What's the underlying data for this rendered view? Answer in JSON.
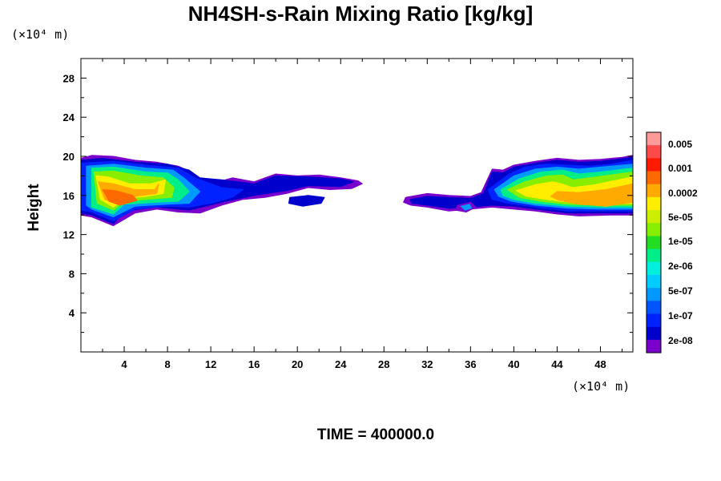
{
  "chart_data": {
    "type": "heatmap",
    "title": "NH4SH-s-Rain Mixing Ratio [kg/kg]",
    "ylabel": "Height",
    "x_unit_label": "(×10⁴ m)",
    "y_unit_label": "(×10⁴ m)",
    "footer": "TIME = 400000.0",
    "xlim": [
      0,
      51
    ],
    "ylim": [
      0,
      30
    ],
    "x_ticks": [
      4,
      8,
      12,
      16,
      20,
      24,
      28,
      32,
      36,
      40,
      44,
      48
    ],
    "y_ticks": [
      4,
      8,
      12,
      16,
      20,
      24,
      28
    ],
    "colorbar": {
      "labels": [
        "0.005",
        "0.001",
        "0.0002",
        "5e-05",
        "1e-05",
        "2e-06",
        "5e-07",
        "1e-07",
        "2e-08"
      ],
      "colors_top_to_bottom": [
        "#ff9a9a",
        "#ff4a4a",
        "#ff1a00",
        "#ff6a00",
        "#ffaa00",
        "#ffee00",
        "#ccee00",
        "#88ee00",
        "#22dd22",
        "#00ee88",
        "#00eedd",
        "#00ccff",
        "#0099ff",
        "#0055ff",
        "#0022ff",
        "#0000cc",
        "#7a00cc"
      ]
    },
    "regions": [
      {
        "level": 0,
        "color": "#7a00cc",
        "points": [
          [
            0,
            19.8
          ],
          [
            1,
            20.1
          ],
          [
            3,
            20
          ],
          [
            5,
            19.6
          ],
          [
            7,
            19.4
          ],
          [
            9,
            19
          ],
          [
            10,
            18.5
          ],
          [
            11,
            17.6
          ],
          [
            12,
            17.2
          ],
          [
            14,
            17.8
          ],
          [
            16,
            17.4
          ],
          [
            18,
            18.2
          ],
          [
            20,
            18
          ],
          [
            22,
            18.1
          ],
          [
            24,
            17.8
          ],
          [
            25.6,
            17.5
          ],
          [
            26,
            17.2
          ],
          [
            25,
            16.7
          ],
          [
            23,
            16.6
          ],
          [
            21,
            16.8
          ],
          [
            19,
            16.2
          ],
          [
            17,
            15.8
          ],
          [
            15,
            15.6
          ],
          [
            13,
            15
          ],
          [
            11,
            14.2
          ],
          [
            9,
            14.3
          ],
          [
            7,
            14.6
          ],
          [
            5,
            14.2
          ],
          [
            3,
            12.9
          ],
          [
            1,
            13.8
          ],
          [
            0,
            14
          ]
        ]
      },
      {
        "level": 1,
        "color": "#0000cc",
        "points": [
          [
            0,
            19.6
          ],
          [
            2,
            19.8
          ],
          [
            5,
            19.4
          ],
          [
            8,
            19.2
          ],
          [
            10,
            18.6
          ],
          [
            11,
            17.8
          ],
          [
            13,
            17.6
          ],
          [
            16,
            17.2
          ],
          [
            18,
            18
          ],
          [
            21,
            17.9
          ],
          [
            24,
            17.7
          ],
          [
            25.2,
            17.4
          ],
          [
            24,
            16.9
          ],
          [
            21,
            17
          ],
          [
            19,
            16.5
          ],
          [
            16,
            16
          ],
          [
            13,
            15.3
          ],
          [
            10,
            14.5
          ],
          [
            7,
            14.8
          ],
          [
            4,
            14.4
          ],
          [
            3,
            13.1
          ],
          [
            1,
            14
          ],
          [
            0,
            14.2
          ]
        ]
      },
      {
        "level": 2,
        "color": "#0022ff",
        "points": [
          [
            0,
            19.3
          ],
          [
            3,
            19.5
          ],
          [
            6,
            19.1
          ],
          [
            9,
            18.8
          ],
          [
            10.5,
            17.8
          ],
          [
            13,
            16.8
          ],
          [
            15,
            16.6
          ],
          [
            14,
            15.8
          ],
          [
            12,
            15.2
          ],
          [
            10,
            14.8
          ],
          [
            8,
            14.9
          ],
          [
            5,
            14.6
          ],
          [
            3,
            13.4
          ],
          [
            1,
            14.3
          ],
          [
            0,
            14.5
          ]
        ]
      },
      {
        "level": 3,
        "color": "#0099ff",
        "points": [
          [
            0.5,
            19
          ],
          [
            3,
            19.2
          ],
          [
            6,
            18.8
          ],
          [
            8.5,
            18.6
          ],
          [
            9.5,
            17.8
          ],
          [
            11,
            16.4
          ],
          [
            10,
            15.2
          ],
          [
            8,
            15.1
          ],
          [
            5,
            14.9
          ],
          [
            3,
            13.8
          ],
          [
            1,
            14.6
          ],
          [
            0.5,
            15
          ]
        ]
      },
      {
        "level": 4,
        "color": "#00ee88",
        "points": [
          [
            1,
            18.8
          ],
          [
            3,
            18.9
          ],
          [
            6,
            18.4
          ],
          [
            8,
            18.3
          ],
          [
            9,
            17.6
          ],
          [
            10,
            16.4
          ],
          [
            9,
            15.4
          ],
          [
            7,
            15.3
          ],
          [
            4,
            15.1
          ],
          [
            3,
            14.1
          ],
          [
            1,
            14.8
          ]
        ]
      },
      {
        "level": 5,
        "color": "#88ee00",
        "points": [
          [
            1.2,
            18.4
          ],
          [
            3,
            18.5
          ],
          [
            5.5,
            18
          ],
          [
            7.6,
            17.8
          ],
          [
            8.6,
            16.8
          ],
          [
            8.4,
            15.8
          ],
          [
            6,
            15.6
          ],
          [
            4,
            15.4
          ],
          [
            3,
            14.5
          ],
          [
            1.5,
            15.2
          ]
        ]
      },
      {
        "level": 6,
        "color": "#ffee00",
        "points": [
          [
            1.4,
            18
          ],
          [
            2.5,
            17.9
          ],
          [
            4.5,
            17.2
          ],
          [
            6.5,
            17.2
          ],
          [
            7.8,
            17.6
          ],
          [
            7.6,
            16.2
          ],
          [
            6,
            15.9
          ],
          [
            4,
            15.7
          ],
          [
            3,
            14.8
          ],
          [
            1.8,
            15.6
          ]
        ]
      },
      {
        "level": 7,
        "color": "#ffaa00",
        "points": [
          [
            1.6,
            17.4
          ],
          [
            3,
            17.2
          ],
          [
            5,
            16.6
          ],
          [
            6.8,
            16.6
          ],
          [
            7.2,
            17.2
          ],
          [
            7,
            16.2
          ],
          [
            5,
            15.9
          ],
          [
            3.2,
            15.2
          ],
          [
            2.2,
            15.6
          ]
        ]
      },
      {
        "level": 8,
        "color": "#ff6a00",
        "points": [
          [
            2,
            16.6
          ],
          [
            3.2,
            16.5
          ],
          [
            4.8,
            16
          ],
          [
            5.2,
            15.5
          ],
          [
            3.6,
            15
          ],
          [
            2.6,
            15.4
          ]
        ]
      },
      {
        "level": 0,
        "color": "#7a00cc",
        "points": [
          [
            30,
            15.8
          ],
          [
            32,
            16.2
          ],
          [
            34,
            16
          ],
          [
            36,
            15.9
          ],
          [
            37,
            16.3
          ],
          [
            37.5,
            17.5
          ],
          [
            38,
            18.7
          ],
          [
            39,
            18.6
          ],
          [
            40,
            19.1
          ],
          [
            42,
            19.5
          ],
          [
            44,
            19.8
          ],
          [
            46,
            19.6
          ],
          [
            48,
            19.7
          ],
          [
            50,
            19.9
          ],
          [
            51,
            20.1
          ],
          [
            51,
            14
          ],
          [
            49,
            14
          ],
          [
            46,
            13.9
          ],
          [
            44,
            14.1
          ],
          [
            42,
            14.4
          ],
          [
            40,
            14.6
          ],
          [
            38,
            14.8
          ],
          [
            36,
            14.6
          ],
          [
            34,
            14.4
          ],
          [
            32,
            14.8
          ],
          [
            30.5,
            15
          ],
          [
            29.8,
            15.3
          ]
        ]
      },
      {
        "level": 1,
        "color": "#0000cc",
        "points": [
          [
            30.4,
            15.6
          ],
          [
            32,
            15.9
          ],
          [
            34,
            15.8
          ],
          [
            36,
            15.7
          ],
          [
            37.2,
            16.2
          ],
          [
            38,
            18.4
          ],
          [
            39,
            18.3
          ],
          [
            40,
            18.9
          ],
          [
            42,
            19.3
          ],
          [
            44,
            19.6
          ],
          [
            46,
            19.4
          ],
          [
            48,
            19.5
          ],
          [
            51,
            19.9
          ],
          [
            51,
            14.2
          ],
          [
            48,
            14.2
          ],
          [
            45,
            14.2
          ],
          [
            42,
            14.6
          ],
          [
            40,
            14.9
          ],
          [
            38,
            15
          ],
          [
            36,
            14.8
          ],
          [
            34,
            14.7
          ],
          [
            32,
            15
          ],
          [
            30.6,
            15.2
          ]
        ]
      },
      {
        "level": 2,
        "color": "#0022ff",
        "points": [
          [
            37.6,
            16.6
          ],
          [
            39.6,
            18.2
          ],
          [
            41,
            18.9
          ],
          [
            43,
            19.2
          ],
          [
            45,
            19.1
          ],
          [
            47,
            19
          ],
          [
            49,
            19.2
          ],
          [
            51,
            19.6
          ],
          [
            51,
            14.4
          ],
          [
            48,
            14.4
          ],
          [
            45,
            14.4
          ],
          [
            42,
            14.8
          ],
          [
            39.5,
            15.2
          ],
          [
            38,
            15.6
          ]
        ]
      },
      {
        "level": 3,
        "color": "#0099ff",
        "points": [
          [
            38.2,
            16.6
          ],
          [
            40,
            18
          ],
          [
            42,
            18.7
          ],
          [
            44,
            18.9
          ],
          [
            46,
            18.7
          ],
          [
            48,
            18.9
          ],
          [
            51,
            19.2
          ],
          [
            51,
            14.6
          ],
          [
            48,
            14.6
          ],
          [
            45,
            14.7
          ],
          [
            42,
            15
          ],
          [
            39.8,
            15.4
          ],
          [
            38.6,
            15.9
          ]
        ]
      },
      {
        "level": 4,
        "color": "#00ee88",
        "points": [
          [
            38.8,
            16.6
          ],
          [
            40.5,
            17.7
          ],
          [
            42.5,
            18.4
          ],
          [
            44.5,
            18.6
          ],
          [
            46,
            18.2
          ],
          [
            48,
            18.4
          ],
          [
            51,
            18.8
          ],
          [
            51,
            14.8
          ],
          [
            48,
            14.8
          ],
          [
            45,
            14.9
          ],
          [
            42,
            15.2
          ],
          [
            40,
            15.6
          ],
          [
            39,
            16
          ]
        ]
      },
      {
        "level": 5,
        "color": "#88ee00",
        "points": [
          [
            39.4,
            16.6
          ],
          [
            41,
            17.4
          ],
          [
            43,
            18
          ],
          [
            44.5,
            18.1
          ],
          [
            45.5,
            17.6
          ],
          [
            47,
            17.8
          ],
          [
            51,
            18.4
          ],
          [
            51,
            15
          ],
          [
            48,
            15
          ],
          [
            45,
            15.1
          ],
          [
            42.5,
            15.4
          ],
          [
            40.5,
            15.8
          ]
        ]
      },
      {
        "level": 6,
        "color": "#ffee00",
        "points": [
          [
            40.2,
            16.5
          ],
          [
            42,
            17.1
          ],
          [
            43.6,
            17.4
          ],
          [
            44.4,
            17.2
          ],
          [
            45.4,
            16.8
          ],
          [
            47.5,
            17.1
          ],
          [
            51,
            17.9
          ],
          [
            51,
            15.2
          ],
          [
            48,
            15.1
          ],
          [
            45,
            15.3
          ],
          [
            43,
            15.6
          ],
          [
            41.2,
            15.9
          ]
        ]
      },
      {
        "level": 7,
        "color": "#ffaa00",
        "points": [
          [
            44,
            16.4
          ],
          [
            46,
            16.3
          ],
          [
            48.5,
            16.6
          ],
          [
            51,
            17.2
          ],
          [
            51,
            15.3
          ],
          [
            48.5,
            14.9
          ],
          [
            46,
            15.1
          ],
          [
            44.2,
            15.5
          ],
          [
            43.4,
            15.9
          ]
        ]
      },
      {
        "level": 1,
        "color": "#0000cc",
        "points": [
          [
            19.3,
            15.8
          ],
          [
            21,
            16
          ],
          [
            22.5,
            15.8
          ],
          [
            22.2,
            15.2
          ],
          [
            20.5,
            14.9
          ],
          [
            19.2,
            15.2
          ]
        ]
      },
      {
        "level": 0,
        "color": "#7a00cc",
        "points": [
          [
            34.8,
            15
          ],
          [
            36,
            15.3
          ],
          [
            36.5,
            14.8
          ],
          [
            35.6,
            14.3
          ],
          [
            34.6,
            14.5
          ]
        ]
      },
      {
        "level": 3,
        "color": "#0099ff",
        "points": [
          [
            35.1,
            14.9
          ],
          [
            35.9,
            15.1
          ],
          [
            36.1,
            14.7
          ],
          [
            35.5,
            14.5
          ]
        ]
      }
    ]
  }
}
